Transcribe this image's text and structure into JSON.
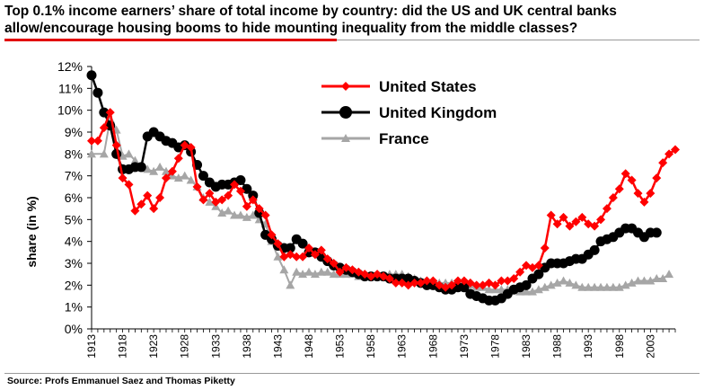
{
  "title": "Top 0.1% income earners’ share of total income by country: did the US and UK central banks allow/encourage housing booms to hide mounting inequality from the middle classes?",
  "source": "Source: Profs Emmanuel Saez and Thomas Piketty",
  "colors": {
    "accent": "#e20000",
    "us": "#ff0000",
    "uk": "#000000",
    "france": "#a6a6a6"
  },
  "chart_data": {
    "type": "line",
    "title": "",
    "xlabel": "",
    "ylabel": "share (in %)",
    "xlim": [
      1913,
      2007
    ],
    "ylim": [
      0,
      12
    ],
    "yticks": [
      "0%",
      "1%",
      "2%",
      "3%",
      "4%",
      "5%",
      "6%",
      "7%",
      "8%",
      "9%",
      "10%",
      "11%",
      "12%"
    ],
    "xticks": [
      "1913",
      "1918",
      "1923",
      "1928",
      "1933",
      "1938",
      "1943",
      "1948",
      "1953",
      "1958",
      "1963",
      "1968",
      "1973",
      "1978",
      "1983",
      "1988",
      "1993",
      "1998",
      "2003"
    ],
    "grid": false,
    "legend_position": "top-center",
    "series": [
      {
        "name": "United States",
        "color": "#ff0000",
        "marker": "diamond",
        "points": [
          [
            1913,
            8.6
          ],
          [
            1914,
            8.6
          ],
          [
            1915,
            9.2
          ],
          [
            1916,
            9.9
          ],
          [
            1917,
            8.4
          ],
          [
            1918,
            6.9
          ],
          [
            1919,
            6.6
          ],
          [
            1920,
            5.4
          ],
          [
            1921,
            5.7
          ],
          [
            1922,
            6.1
          ],
          [
            1923,
            5.5
          ],
          [
            1924,
            6.0
          ],
          [
            1925,
            6.9
          ],
          [
            1926,
            7.2
          ],
          [
            1927,
            7.8
          ],
          [
            1928,
            8.4
          ],
          [
            1929,
            8.3
          ],
          [
            1930,
            6.5
          ],
          [
            1931,
            5.9
          ],
          [
            1932,
            6.2
          ],
          [
            1933,
            5.8
          ],
          [
            1934,
            5.9
          ],
          [
            1935,
            6.1
          ],
          [
            1936,
            6.6
          ],
          [
            1937,
            6.3
          ],
          [
            1938,
            5.6
          ],
          [
            1939,
            5.9
          ],
          [
            1940,
            5.5
          ],
          [
            1941,
            5.2
          ],
          [
            1942,
            4.3
          ],
          [
            1943,
            3.9
          ],
          [
            1944,
            3.3
          ],
          [
            1945,
            3.4
          ],
          [
            1946,
            3.3
          ],
          [
            1947,
            3.3
          ],
          [
            1948,
            3.7
          ],
          [
            1949,
            3.4
          ],
          [
            1950,
            3.6
          ],
          [
            1951,
            3.2
          ],
          [
            1952,
            3.0
          ],
          [
            1953,
            2.6
          ],
          [
            1954,
            2.8
          ],
          [
            1955,
            2.7
          ],
          [
            1956,
            2.6
          ],
          [
            1957,
            2.5
          ],
          [
            1958,
            2.4
          ],
          [
            1959,
            2.5
          ],
          [
            1960,
            2.4
          ],
          [
            1961,
            2.3
          ],
          [
            1962,
            2.1
          ],
          [
            1963,
            2.1
          ],
          [
            1964,
            2.0
          ],
          [
            1965,
            2.1
          ],
          [
            1966,
            2.1
          ],
          [
            1967,
            2.2
          ],
          [
            1968,
            2.2
          ],
          [
            1969,
            2.0
          ],
          [
            1970,
            1.9
          ],
          [
            1971,
            2.0
          ],
          [
            1972,
            2.2
          ],
          [
            1973,
            2.2
          ],
          [
            1974,
            2.1
          ],
          [
            1975,
            2.0
          ],
          [
            1976,
            2.0
          ],
          [
            1977,
            2.1
          ],
          [
            1978,
            2.0
          ],
          [
            1979,
            2.2
          ],
          [
            1980,
            2.2
          ],
          [
            1981,
            2.3
          ],
          [
            1982,
            2.6
          ],
          [
            1983,
            2.9
          ],
          [
            1984,
            2.8
          ],
          [
            1985,
            2.9
          ],
          [
            1986,
            3.7
          ],
          [
            1987,
            5.2
          ],
          [
            1988,
            4.8
          ],
          [
            1989,
            5.1
          ],
          [
            1990,
            4.7
          ],
          [
            1991,
            4.9
          ],
          [
            1992,
            5.1
          ],
          [
            1993,
            4.8
          ],
          [
            1994,
            4.7
          ],
          [
            1995,
            5.0
          ],
          [
            1996,
            5.5
          ],
          [
            1997,
            6.0
          ],
          [
            1998,
            6.4
          ],
          [
            1999,
            7.1
          ],
          [
            2000,
            6.8
          ],
          [
            2001,
            6.2
          ],
          [
            2002,
            5.8
          ],
          [
            2003,
            6.2
          ],
          [
            2004,
            6.9
          ],
          [
            2005,
            7.6
          ],
          [
            2006,
            8.0
          ],
          [
            2007,
            8.2
          ]
        ]
      },
      {
        "name": "United Kingdom",
        "color": "#000000",
        "marker": "circle",
        "points": [
          [
            1913,
            11.6
          ],
          [
            1914,
            10.8
          ],
          [
            1915,
            9.9
          ],
          [
            1916,
            9.3
          ],
          [
            1917,
            8.0
          ],
          [
            1918,
            7.3
          ],
          [
            1919,
            7.3
          ],
          [
            1920,
            7.4
          ],
          [
            1921,
            7.4
          ],
          [
            1922,
            8.8
          ],
          [
            1923,
            9.0
          ],
          [
            1924,
            8.8
          ],
          [
            1925,
            8.6
          ],
          [
            1926,
            8.5
          ],
          [
            1927,
            8.3
          ],
          [
            1928,
            8.4
          ],
          [
            1929,
            8.1
          ],
          [
            1930,
            7.5
          ],
          [
            1931,
            7.0
          ],
          [
            1932,
            6.7
          ],
          [
            1933,
            6.5
          ],
          [
            1934,
            6.6
          ],
          [
            1935,
            6.6
          ],
          [
            1936,
            6.7
          ],
          [
            1937,
            6.8
          ],
          [
            1938,
            6.4
          ],
          [
            1939,
            6.1
          ],
          [
            1940,
            5.3
          ],
          [
            1941,
            4.3
          ],
          [
            1942,
            4.1
          ],
          [
            1943,
            3.8
          ],
          [
            1944,
            3.7
          ],
          [
            1945,
            3.7
          ],
          [
            1946,
            4.1
          ],
          [
            1947,
            3.9
          ],
          [
            1948,
            3.5
          ],
          [
            1949,
            3.5
          ],
          [
            1950,
            3.3
          ],
          [
            1951,
            3.1
          ],
          [
            1952,
            2.9
          ],
          [
            1953,
            2.8
          ],
          [
            1954,
            2.7
          ],
          [
            1955,
            2.6
          ],
          [
            1956,
            2.5
          ],
          [
            1957,
            2.4
          ],
          [
            1958,
            2.4
          ],
          [
            1959,
            2.4
          ],
          [
            1960,
            2.4
          ],
          [
            1961,
            2.3
          ],
          [
            1962,
            2.3
          ],
          [
            1963,
            2.3
          ],
          [
            1964,
            2.3
          ],
          [
            1965,
            2.2
          ],
          [
            1966,
            2.1
          ],
          [
            1967,
            2.0
          ],
          [
            1968,
            2.0
          ],
          [
            1969,
            1.9
          ],
          [
            1970,
            1.8
          ],
          [
            1971,
            1.8
          ],
          [
            1972,
            1.9
          ],
          [
            1973,
            1.9
          ],
          [
            1974,
            1.6
          ],
          [
            1975,
            1.5
          ],
          [
            1976,
            1.4
          ],
          [
            1977,
            1.3
          ],
          [
            1978,
            1.3
          ],
          [
            1979,
            1.4
          ],
          [
            1980,
            1.6
          ],
          [
            1981,
            1.8
          ],
          [
            1982,
            1.9
          ],
          [
            1983,
            2.0
          ],
          [
            1984,
            2.3
          ],
          [
            1985,
            2.5
          ],
          [
            1986,
            2.8
          ],
          [
            1987,
            3.0
          ],
          [
            1988,
            3.0
          ],
          [
            1989,
            3.0
          ],
          [
            1990,
            3.1
          ],
          [
            1991,
            3.2
          ],
          [
            1992,
            3.2
          ],
          [
            1993,
            3.4
          ],
          [
            1994,
            3.6
          ],
          [
            1995,
            4.0
          ],
          [
            1996,
            4.1
          ],
          [
            1997,
            4.2
          ],
          [
            1998,
            4.4
          ],
          [
            1999,
            4.6
          ],
          [
            2000,
            4.6
          ],
          [
            2001,
            4.4
          ],
          [
            2002,
            4.2
          ],
          [
            2003,
            4.4
          ],
          [
            2004,
            4.4
          ]
        ]
      },
      {
        "name": "France",
        "color": "#a6a6a6",
        "marker": "triangle",
        "points": [
          [
            1913,
            8.0
          ],
          [
            1915,
            8.0
          ],
          [
            1916,
            9.6
          ],
          [
            1917,
            9.1
          ],
          [
            1918,
            7.9
          ],
          [
            1919,
            8.0
          ],
          [
            1920,
            7.7
          ],
          [
            1921,
            7.4
          ],
          [
            1922,
            7.3
          ],
          [
            1923,
            7.2
          ],
          [
            1924,
            7.4
          ],
          [
            1925,
            7.2
          ],
          [
            1926,
            7.0
          ],
          [
            1927,
            6.9
          ],
          [
            1928,
            7.0
          ],
          [
            1929,
            6.8
          ],
          [
            1930,
            6.5
          ],
          [
            1931,
            6.0
          ],
          [
            1932,
            5.8
          ],
          [
            1933,
            5.6
          ],
          [
            1934,
            5.3
          ],
          [
            1935,
            5.4
          ],
          [
            1936,
            5.2
          ],
          [
            1937,
            5.2
          ],
          [
            1938,
            5.1
          ],
          [
            1939,
            5.2
          ],
          [
            1940,
            5.0
          ],
          [
            1941,
            4.8
          ],
          [
            1942,
            4.0
          ],
          [
            1943,
            3.3
          ],
          [
            1944,
            2.7
          ],
          [
            1945,
            2.0
          ],
          [
            1946,
            2.6
          ],
          [
            1947,
            2.5
          ],
          [
            1948,
            2.6
          ],
          [
            1949,
            2.5
          ],
          [
            1950,
            2.6
          ],
          [
            1951,
            2.6
          ],
          [
            1952,
            2.5
          ],
          [
            1953,
            2.5
          ],
          [
            1954,
            2.5
          ],
          [
            1955,
            2.5
          ],
          [
            1956,
            2.4
          ],
          [
            1957,
            2.4
          ],
          [
            1958,
            2.4
          ],
          [
            1959,
            2.4
          ],
          [
            1960,
            2.4
          ],
          [
            1961,
            2.5
          ],
          [
            1962,
            2.5
          ],
          [
            1963,
            2.5
          ],
          [
            1964,
            2.4
          ],
          [
            1965,
            2.3
          ],
          [
            1966,
            2.2
          ],
          [
            1967,
            2.2
          ],
          [
            1968,
            2.1
          ],
          [
            1969,
            2.1
          ],
          [
            1970,
            2.1
          ],
          [
            1971,
            2.1
          ],
          [
            1972,
            2.1
          ],
          [
            1973,
            2.1
          ],
          [
            1974,
            2.0
          ],
          [
            1975,
            1.9
          ],
          [
            1976,
            1.9
          ],
          [
            1977,
            1.8
          ],
          [
            1978,
            1.8
          ],
          [
            1979,
            1.8
          ],
          [
            1980,
            1.8
          ],
          [
            1981,
            1.8
          ],
          [
            1982,
            1.7
          ],
          [
            1983,
            1.7
          ],
          [
            1984,
            1.7
          ],
          [
            1985,
            1.8
          ],
          [
            1986,
            1.9
          ],
          [
            1987,
            2.0
          ],
          [
            1988,
            2.1
          ],
          [
            1989,
            2.2
          ],
          [
            1990,
            2.1
          ],
          [
            1991,
            2.0
          ],
          [
            1992,
            1.9
          ],
          [
            1993,
            1.9
          ],
          [
            1994,
            1.9
          ],
          [
            1995,
            1.9
          ],
          [
            1996,
            1.9
          ],
          [
            1997,
            1.9
          ],
          [
            1998,
            1.9
          ],
          [
            1999,
            2.0
          ],
          [
            2000,
            2.1
          ],
          [
            2001,
            2.2
          ],
          [
            2002,
            2.2
          ],
          [
            2003,
            2.2
          ],
          [
            2004,
            2.3
          ],
          [
            2005,
            2.3
          ],
          [
            2006,
            2.5
          ]
        ]
      }
    ]
  }
}
